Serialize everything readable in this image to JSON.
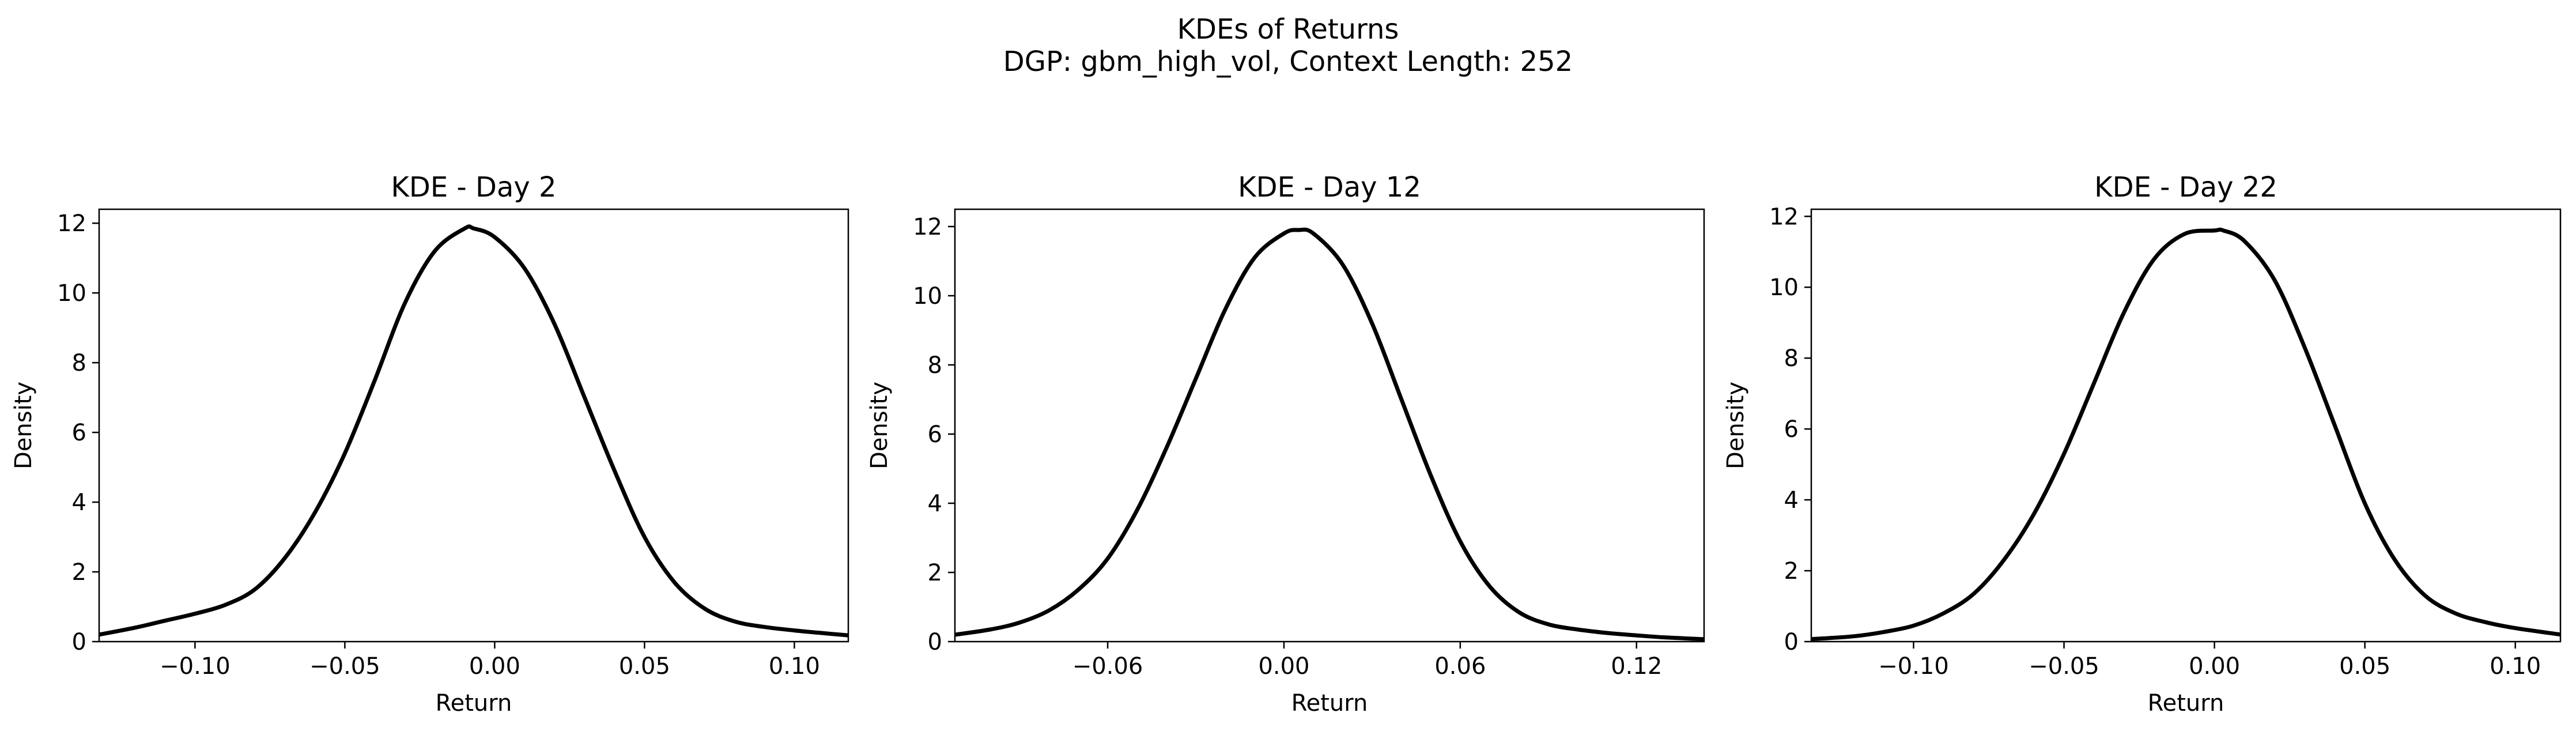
{
  "figure": {
    "suptitle_line1": "KDEs of Returns",
    "suptitle_line2": "DGP: gbm_high_vol, Context Length: 252"
  },
  "chart_data": [
    {
      "type": "line",
      "title": "KDE - Day 2",
      "xlabel": "Return",
      "ylabel": "Density",
      "xlim": [
        -0.132,
        0.118
      ],
      "ylim": [
        0,
        12.4
      ],
      "xticks": [
        -0.1,
        -0.05,
        0.0,
        0.05,
        0.1
      ],
      "xtick_labels": [
        "−0.10",
        "−0.05",
        "0.00",
        "0.05",
        "0.10"
      ],
      "yticks": [
        0,
        2,
        4,
        6,
        8,
        10,
        12
      ],
      "ytick_labels": [
        "0",
        "2",
        "4",
        "6",
        "8",
        "10",
        "12"
      ],
      "line_color": "#000000",
      "series": [
        {
          "x": [
            -0.132,
            -0.12,
            -0.11,
            -0.1,
            -0.09,
            -0.08,
            -0.07,
            -0.06,
            -0.05,
            -0.04,
            -0.03,
            -0.02,
            -0.01,
            -0.007,
            0.0,
            0.01,
            0.02,
            0.03,
            0.04,
            0.05,
            0.06,
            0.07,
            0.08,
            0.09,
            0.1,
            0.11,
            0.118
          ],
          "y": [
            0.2,
            0.4,
            0.6,
            0.8,
            1.05,
            1.5,
            2.4,
            3.7,
            5.4,
            7.5,
            9.7,
            11.2,
            11.85,
            11.85,
            11.6,
            10.7,
            9.1,
            7.0,
            4.9,
            3.0,
            1.7,
            0.95,
            0.58,
            0.42,
            0.32,
            0.24,
            0.18
          ]
        }
      ]
    },
    {
      "type": "line",
      "title": "KDE - Day 12",
      "xlabel": "Return",
      "ylabel": "Density",
      "xlim": [
        -0.112,
        0.143
      ],
      "ylim": [
        0,
        12.5
      ],
      "xticks": [
        -0.06,
        0.0,
        0.06,
        0.12
      ],
      "xtick_labels": [
        "−0.06",
        "0.00",
        "0.06",
        "0.12"
      ],
      "yticks": [
        0,
        2,
        4,
        6,
        8,
        10,
        12
      ],
      "ytick_labels": [
        "0",
        "2",
        "4",
        "6",
        "8",
        "10",
        "12"
      ],
      "line_color": "#000000",
      "series": [
        {
          "x": [
            -0.112,
            -0.1,
            -0.09,
            -0.08,
            -0.07,
            -0.06,
            -0.05,
            -0.04,
            -0.03,
            -0.02,
            -0.01,
            0.0,
            0.005,
            0.01,
            0.02,
            0.03,
            0.04,
            0.05,
            0.06,
            0.07,
            0.08,
            0.09,
            0.1,
            0.11,
            0.12,
            0.13,
            0.143
          ],
          "y": [
            0.2,
            0.35,
            0.55,
            0.9,
            1.5,
            2.4,
            3.8,
            5.6,
            7.6,
            9.6,
            11.1,
            11.8,
            11.9,
            11.8,
            10.9,
            9.2,
            7.0,
            4.8,
            2.9,
            1.6,
            0.85,
            0.5,
            0.35,
            0.25,
            0.18,
            0.12,
            0.07
          ]
        }
      ]
    },
    {
      "type": "line",
      "title": "KDE - Day 22",
      "xlabel": "Return",
      "ylabel": "Density",
      "xlim": [
        -0.134,
        0.115
      ],
      "ylim": [
        0,
        12.2
      ],
      "xticks": [
        -0.1,
        -0.05,
        0.0,
        0.05,
        0.1
      ],
      "xtick_labels": [
        "−0.10",
        "−0.05",
        "0.00",
        "0.05",
        "0.10"
      ],
      "yticks": [
        0,
        2,
        4,
        6,
        8,
        10,
        12
      ],
      "ytick_labels": [
        "0",
        "2",
        "4",
        "6",
        "8",
        "10",
        "12"
      ],
      "line_color": "#000000",
      "series": [
        {
          "x": [
            -0.134,
            -0.12,
            -0.11,
            -0.1,
            -0.09,
            -0.08,
            -0.07,
            -0.06,
            -0.05,
            -0.04,
            -0.03,
            -0.02,
            -0.01,
            0.0,
            0.003,
            0.01,
            0.02,
            0.03,
            0.04,
            0.05,
            0.06,
            0.07,
            0.08,
            0.09,
            0.1,
            0.115
          ],
          "y": [
            0.07,
            0.15,
            0.27,
            0.45,
            0.8,
            1.35,
            2.3,
            3.6,
            5.3,
            7.3,
            9.3,
            10.8,
            11.5,
            11.6,
            11.6,
            11.3,
            10.2,
            8.3,
            6.1,
            3.9,
            2.3,
            1.3,
            0.8,
            0.55,
            0.38,
            0.2
          ]
        }
      ]
    }
  ]
}
